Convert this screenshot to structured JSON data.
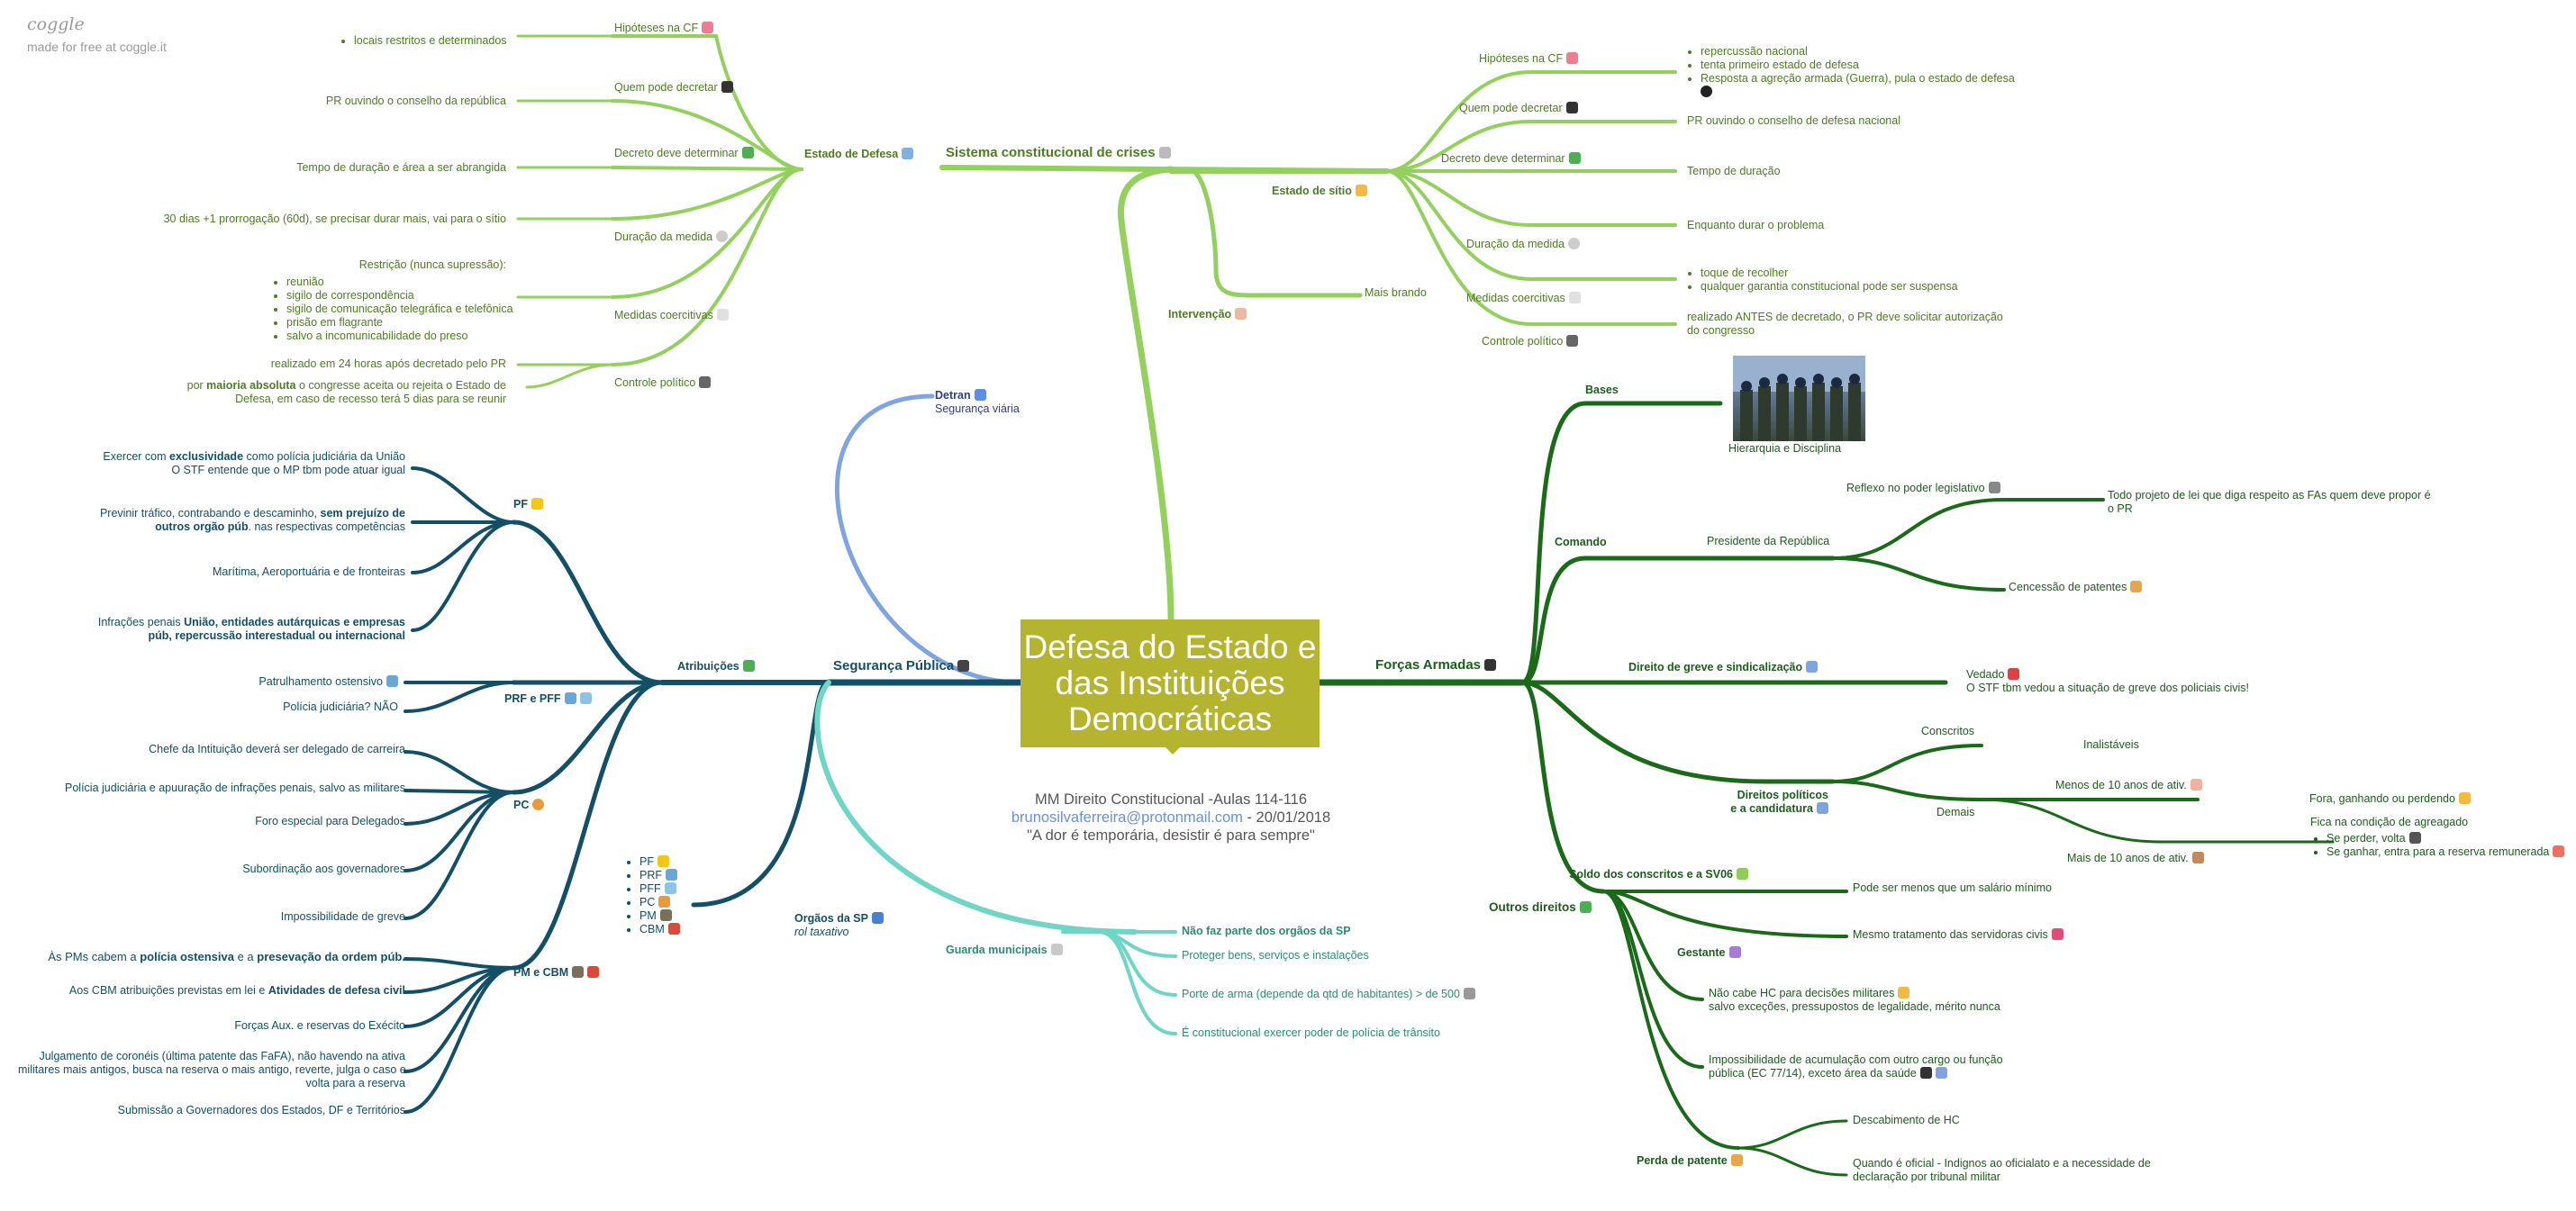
{
  "logo": {
    "brand": "coggle",
    "tagline": "made for free at coggle.it"
  },
  "center": {
    "title": "Defesa do Estado e das Instituições Democráticas"
  },
  "note": {
    "line1": "MM Direito Constitucional -Aulas 114-116",
    "email": "brunosilvaferreira@protonmail.com",
    "date": " - 20/01/2018",
    "quote": "\"A dor é temporária, desistir é para sempre\""
  },
  "crises": {
    "title": "Sistema constitucional de crises",
    "intervencao": {
      "label": "Intervenção",
      "child": "Mais brando"
    },
    "defesa": {
      "label": "Estado de Defesa",
      "hipoteses": {
        "label": "Hipóteses na CF",
        "item": "locais restritos e determinados"
      },
      "quem": {
        "label": "Quem pode decretar",
        "text": "PR ouvindo o conselho da república"
      },
      "decreto": {
        "label": "Decreto deve determinar",
        "text": "Tempo de duração e área a ser abrangida"
      },
      "duracao": {
        "label": "Duração da medida",
        "text": "30 dias +1 prorrogação (60d), se precisar durar mais, vai para o sítio"
      },
      "medidas": {
        "label": "Medidas coercitivas",
        "heading": "Restrição (nunca supressão):",
        "items": [
          "reunião",
          "sigilo de correspondência",
          "sigilo de comunicação telegráfica e telefônica",
          "prisão em flagrante",
          "salvo a incomunicabilidade do preso"
        ]
      },
      "controle": {
        "label": "Controle político",
        "text1": "realizado em 24 horas após decretado pelo PR",
        "text2_pre": "por ",
        "text2_bold": "maioria absoluta",
        "text2_post": " o congresse aceita ou rejeita o Estado de",
        "text2_line2": "Defesa, em caso de recesso terá 5 dias para se reunir"
      }
    },
    "sitio": {
      "label": "Estado de sítio",
      "hipoteses": {
        "label": "Hipóteses na CF",
        "items": [
          "repercussão nacional",
          "tenta primeiro estado de defesa",
          "Resposta a agreção armada (Guerra), pula o estado de defesa"
        ]
      },
      "quem": {
        "label": "Quem pode decretar",
        "text": "PR ouvindo o conselho de defesa nacional"
      },
      "decreto": {
        "label": "Decreto deve determinar",
        "text": "Tempo de duração"
      },
      "duracao": {
        "label": "Duração da medida",
        "text": "Enquanto durar o problema"
      },
      "medidas": {
        "label": "Medidas coercitivas",
        "items": [
          "toque de recolher",
          "qualquer garantia constitucional pode ser suspensa"
        ]
      },
      "controle": {
        "label": "Controle político",
        "line1": "realizado ANTES de decretado, o PR deve solicitar autorização",
        "line2": "do congresso"
      }
    }
  },
  "seguranca": {
    "label": "Segurança Pública",
    "detran": {
      "label": "Detran",
      "sub": "Segurança viária"
    },
    "atribuicoes": {
      "label": "Atribuições",
      "pf": {
        "label": "PF",
        "i1_pre": "Exercer com ",
        "i1_bold": "exclusividade",
        "i1_post": " como polícia judiciária da União",
        "i1_line2": "O STF entende que o MP tbm pode atuar igual",
        "i2_pre": "Previnir tráfico, contrabando e descaminho, ",
        "i2_bold": "sem prejuízo de",
        "i2_line2_bold": "outros orgão púb",
        "i2_line2": ". nas respectivas competências",
        "i3": "Marítima, Aeroportuária e de fronteiras",
        "i4_pre": "Infrações penais ",
        "i4_bold": "União, entidades autárquicas e empresas",
        "i4_line2_bold": "púb, repercussão interestadual ou internacional"
      },
      "prf": {
        "label": "PRF e PFF",
        "items": [
          "Patrulhamento ostensivo",
          "Polícia judiciária? NÃO"
        ]
      },
      "pc": {
        "label": "PC",
        "items": [
          "Chefe da Intituição deverá ser delegado de carreira",
          "Polícia judiciária e apuuração de infrações penais, salvo as militares",
          "Foro especial para Delegados",
          "Subordinação aos governadores",
          "Impossibilidade de greve"
        ]
      },
      "pm": {
        "label": "PM e CBM",
        "i1_pre": "Às PMs cabem a ",
        "i1_bold1": "polícia ostensiva",
        "i1_mid": " e a ",
        "i1_bold2": "presevação da ordem púb.",
        "i2_pre": "Aos CBM atribuições previstas em lei e ",
        "i2_bold": "Atividades de defesa civil",
        "i3": "Forças Aux. e reservas do Exécito",
        "i4_l1": "Julgamento de coronéis (última patente das FaFA), não havendo na ativa",
        "i4_l2": "militares mais antigos, busca na reserva o mais antigo, reverte, julga o caso e",
        "i4_l3": "volta para a reserva",
        "i5": "Submissão a Governadores dos Estados, DF e Territórios"
      }
    },
    "orgaos": {
      "label": "Orgãos da SP",
      "sub": "rol taxativo",
      "items": [
        "PF",
        "PRF",
        "PFF",
        "PC",
        "PM",
        "CBM"
      ]
    },
    "guarda": {
      "label": "Guarda municipais",
      "items": [
        "Não faz parte dos orgãos da SP",
        "Proteger bens, serviços e instalações",
        "Porte de arma (depende da qtd de habitantes) > de 500",
        "É constitucional exercer poder de polícia de trânsito"
      ]
    }
  },
  "forcas": {
    "label": "Forças Armadas",
    "bases": {
      "label": "Bases",
      "caption": "Hierarquia e Disciplina"
    },
    "comando": {
      "label": "Comando",
      "pres": "Presidente da República",
      "reflexo": "Reflexo no poder legislativo",
      "reflexo_l1": "Todo projeto de lei que diga respeito as FAs quem deve propor é",
      "reflexo_l2": "o PR",
      "patentes": "Cencessão de patentes"
    },
    "greve": {
      "label": "Direito de greve e sindicalização",
      "vedado": "Vedado",
      "stf": "O STF tbm vedou a situação de greve dos policiais civis!"
    },
    "politicos": {
      "label1": "Direitos políticos",
      "label2": "e a candidatura",
      "conscritos": "Conscritos",
      "inalistaveis": "Inalistáveis",
      "demais": "Demais",
      "menos": "Menos de 10 anos de ativ.",
      "fora": "Fora, ganhando ou perdendo",
      "mais": "Mais de 10 anos de ativ.",
      "agregado": "Fica na condição de agreagado",
      "perder": "Se perder, volta",
      "ganhar": "Se ganhar, entra para a reserva remunerada"
    },
    "outros": {
      "label": "Outros direitos",
      "soldo": "Soldo dos conscritos e a SV06",
      "soldo_text": "Pode ser menos que um salário mínimo",
      "gestante": "Gestante",
      "gestante_text": "Mesmo tratamento das servidoras civis",
      "hc_l1": "Não cabe HC para decisões militares",
      "hc_l2": "salvo exceções, pressupostos de legalidade, mérito nunca",
      "acum_l1": "Impossibilidade de acumulação com outro cargo ou função",
      "acum_l2": "pública (EC 77/14), exceto área da saúde",
      "perda": "Perda de patente",
      "perda1": "Descabimento de HC",
      "perda2_l1": "Quando é oficial - Indignos ao oficialato e a necessidade de",
      "perda2_l2": "declaração por tribunal militar"
    }
  },
  "colors": {
    "center": "#b5b42f",
    "crises": "#8fcc5a",
    "security": "#134f66",
    "detran": "#7fa4e0",
    "guarda": "#6fd6c6",
    "forces": "#1a6a1a"
  }
}
